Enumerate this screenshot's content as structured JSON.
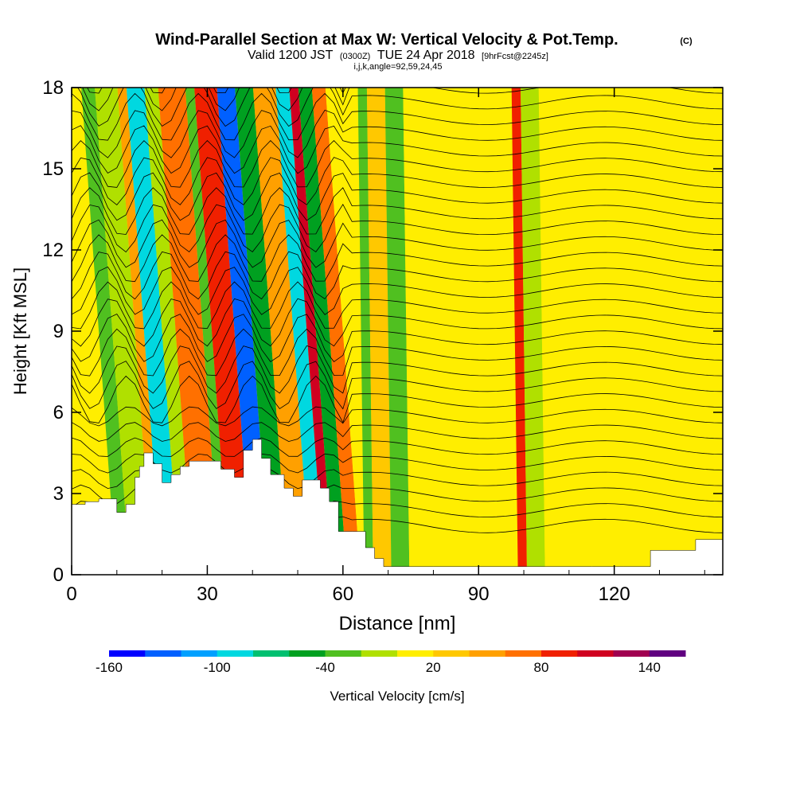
{
  "chart_data": {
    "type": "heatmap",
    "title": "Wind-Parallel Section at Max W: Vertical Velocity & Pot.Temp.",
    "copyright": "(C)",
    "subtitle": {
      "valid": "Valid 1200 JST",
      "utc": "(0300Z)",
      "date": "TUE 24 Apr 2018",
      "forecast": "[9hrFcst@2245z]"
    },
    "index_line": "i,j,k,angle=92,59,24,45",
    "xlabel": "Distance [nm]",
    "ylabel": "Height [Kft MSL]",
    "xlim": [
      0,
      144
    ],
    "ylim": [
      0,
      18
    ],
    "x_ticks": [
      "0",
      "30",
      "60",
      "90",
      "120"
    ],
    "y_ticks": [
      "0",
      "3",
      "6",
      "9",
      "12",
      "15",
      "18"
    ],
    "colorbar": {
      "label": "Vertical Velocity [cm/s]",
      "tick_labels": [
        "-160",
        "-100",
        "-40",
        "20",
        "80",
        "140"
      ],
      "min": -160,
      "step": 20,
      "colors": [
        "#0000ff",
        "#0060ff",
        "#00a0ff",
        "#00d8e0",
        "#00c070",
        "#00a020",
        "#50c020",
        "#b0e000",
        "#ffee00",
        "#ffc800",
        "#ffa000",
        "#ff7000",
        "#f02000",
        "#d00020",
        "#a00050",
        "#600080"
      ]
    },
    "velocity_bands": [
      {
        "x": [
          0,
          6
        ],
        "w": 5
      },
      {
        "x": [
          6,
          9
        ],
        "w": -30
      },
      {
        "x": [
          9,
          14
        ],
        "w": -10
      },
      {
        "x": [
          14,
          16
        ],
        "w": 50
      },
      {
        "x": [
          16,
          20
        ],
        "w": -90
      },
      {
        "x": [
          20,
          23
        ],
        "w": -20
      },
      {
        "x": [
          23,
          29
        ],
        "w": 70
      },
      {
        "x": [
          29,
          31
        ],
        "w": -40
      },
      {
        "x": [
          31,
          36
        ],
        "w": 90
      },
      {
        "x": [
          36,
          40
        ],
        "w": -130
      },
      {
        "x": [
          40,
          44
        ],
        "w": -50
      },
      {
        "x": [
          44,
          49
        ],
        "w": 50
      },
      {
        "x": [
          49,
          52
        ],
        "w": -90
      },
      {
        "x": [
          52,
          54
        ],
        "w": 110
      },
      {
        "x": [
          54,
          57
        ],
        "w": -50
      },
      {
        "x": [
          57,
          60
        ],
        "w": 70
      },
      {
        "x": [
          60,
          64
        ],
        "w": 10
      },
      {
        "x": [
          64,
          66
        ],
        "w": -30
      },
      {
        "x": [
          66,
          70
        ],
        "w": 30
      },
      {
        "x": [
          70,
          74
        ],
        "w": -30
      },
      {
        "x": [
          74,
          98
        ],
        "w": 10
      },
      {
        "x": [
          98,
          100
        ],
        "w": 90
      },
      {
        "x": [
          100,
          104
        ],
        "w": -20
      },
      {
        "x": [
          104,
          144
        ],
        "w": 10
      }
    ],
    "terrain": [
      {
        "x": 0,
        "h": 2.6
      },
      {
        "x": 3,
        "h": 2.7
      },
      {
        "x": 6,
        "h": 2.8
      },
      {
        "x": 10,
        "h": 2.3
      },
      {
        "x": 12,
        "h": 2.6
      },
      {
        "x": 14,
        "h": 3.6
      },
      {
        "x": 15,
        "h": 4.0
      },
      {
        "x": 16,
        "h": 4.5
      },
      {
        "x": 18,
        "h": 4.1
      },
      {
        "x": 20,
        "h": 3.4
      },
      {
        "x": 22,
        "h": 3.7
      },
      {
        "x": 24,
        "h": 4.0
      },
      {
        "x": 26,
        "h": 4.2
      },
      {
        "x": 30,
        "h": 4.2
      },
      {
        "x": 33,
        "h": 3.9
      },
      {
        "x": 36,
        "h": 3.6
      },
      {
        "x": 38,
        "h": 4.6
      },
      {
        "x": 40,
        "h": 5.0
      },
      {
        "x": 42,
        "h": 4.3
      },
      {
        "x": 44,
        "h": 3.7
      },
      {
        "x": 47,
        "h": 3.2
      },
      {
        "x": 49,
        "h": 2.9
      },
      {
        "x": 51,
        "h": 3.5
      },
      {
        "x": 53,
        "h": 3.5
      },
      {
        "x": 55,
        "h": 3.2
      },
      {
        "x": 57,
        "h": 2.7
      },
      {
        "x": 59,
        "h": 1.6
      },
      {
        "x": 62,
        "h": 1.6
      },
      {
        "x": 65,
        "h": 1.0
      },
      {
        "x": 67,
        "h": 0.6
      },
      {
        "x": 69,
        "h": 0.3
      },
      {
        "x": 80,
        "h": 0.3
      },
      {
        "x": 100,
        "h": 0.3
      },
      {
        "x": 115,
        "h": 0.3
      },
      {
        "x": 122,
        "h": 0.3
      },
      {
        "x": 128,
        "h": 0.9
      },
      {
        "x": 138,
        "h": 1.3
      },
      {
        "x": 144,
        "h": 1.3
      }
    ]
  }
}
